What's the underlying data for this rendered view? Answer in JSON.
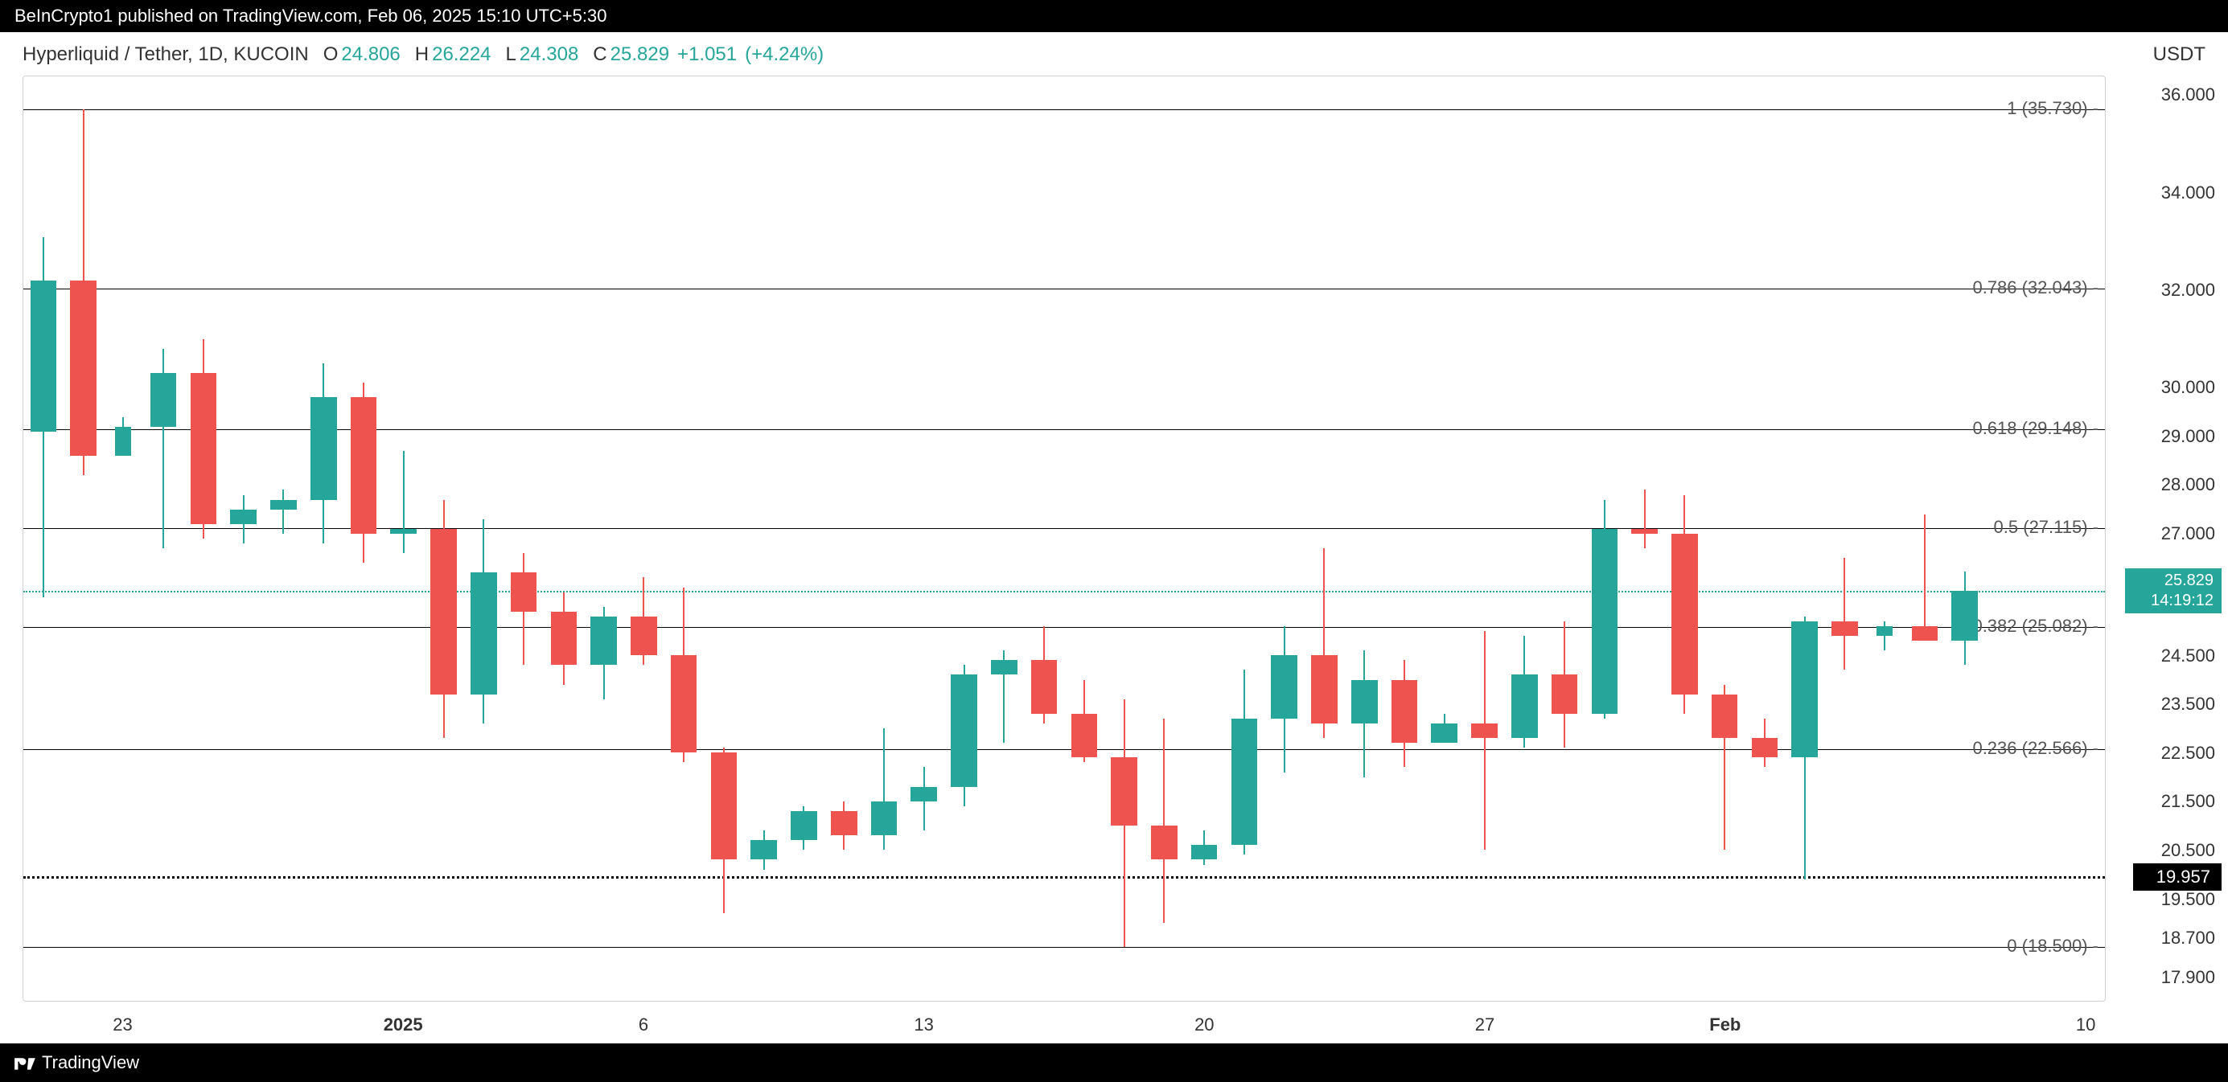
{
  "header": {
    "text": "BeInCrypto1 published on TradingView.com, Feb 06, 2025 15:10 UTC+5:30"
  },
  "ohlc": {
    "symbol": "Hyperliquid / Tether, 1D, KUCOIN",
    "o_lbl": "O",
    "o": "24.806",
    "h_lbl": "H",
    "h": "26.224",
    "l_lbl": "L",
    "l": "24.308",
    "c_lbl": "C",
    "c": "25.829",
    "chg": "+1.051",
    "pct": "(+4.24%)"
  },
  "footer": {
    "brand": "TradingView"
  },
  "chart": {
    "type": "candlestick",
    "bg": "#ffffff",
    "up_color": "#26a69a",
    "down_color": "#ef5350",
    "wick_up": "#26a69a",
    "wick_down": "#ef5350",
    "axis_color": "#333333",
    "grid_color": "#d0d0d0",
    "y_unit": "USDT",
    "y_min": 17.4,
    "y_max": 36.4,
    "y_ticks": [
      {
        "v": 36.0,
        "t": "36.000"
      },
      {
        "v": 34.0,
        "t": "34.000"
      },
      {
        "v": 32.0,
        "t": "32.000"
      },
      {
        "v": 30.0,
        "t": "30.000"
      },
      {
        "v": 29.0,
        "t": "29.000"
      },
      {
        "v": 28.0,
        "t": "28.000"
      },
      {
        "v": 27.0,
        "t": "27.000"
      },
      {
        "v": 25.0,
        "t": ""
      },
      {
        "v": 24.5,
        "t": "24.500"
      },
      {
        "v": 23.5,
        "t": "23.500"
      },
      {
        "v": 22.5,
        "t": "22.500"
      },
      {
        "v": 21.5,
        "t": "21.500"
      },
      {
        "v": 20.5,
        "t": "20.500"
      },
      {
        "v": 19.5,
        "t": "19.500"
      },
      {
        "v": 18.7,
        "t": "18.700"
      },
      {
        "v": 17.9,
        "t": "17.900"
      }
    ],
    "price_tag": {
      "v": 25.829,
      "line1": "25.829",
      "line2": "14:19:12"
    },
    "black_tag": {
      "v": 19.957,
      "t": "19.957"
    },
    "dotted_black_v": 19.957,
    "dotted_teal_v": 25.829,
    "fib_lines": [
      {
        "v": 35.73,
        "label": "1 (35.730)"
      },
      {
        "v": 32.043,
        "label": "0.786 (32.043)"
      },
      {
        "v": 29.148,
        "label": "0.618 (29.148)"
      },
      {
        "v": 27.115,
        "label": "0.5 (27.115)"
      },
      {
        "v": 25.082,
        "label": "0.382 (25.082)"
      },
      {
        "v": 22.566,
        "label": "0.236 (22.566)"
      },
      {
        "v": 18.5,
        "label": "0 (18.500)"
      }
    ],
    "x_ticks": [
      {
        "i": 2,
        "t": "23",
        "bold": false
      },
      {
        "i": 9,
        "t": "2025",
        "bold": true
      },
      {
        "i": 15,
        "t": "6",
        "bold": false
      },
      {
        "i": 22,
        "t": "13",
        "bold": false
      },
      {
        "i": 29,
        "t": "20",
        "bold": false
      },
      {
        "i": 36,
        "t": "27",
        "bold": false
      },
      {
        "i": 42,
        "t": "Feb",
        "bold": true
      },
      {
        "i": 51,
        "t": "10",
        "bold": false
      }
    ],
    "n_slots": 52,
    "candles": [
      {
        "i": 0,
        "o": 29.1,
        "h": 33.1,
        "l": 25.7,
        "c": 32.2
      },
      {
        "i": 1,
        "o": 32.2,
        "h": 35.73,
        "l": 28.2,
        "c": 28.6
      },
      {
        "i": 2,
        "o": 28.6,
        "h": 29.4,
        "l": 28.6,
        "c": 29.2,
        "thin": true
      },
      {
        "i": 3,
        "o": 29.2,
        "h": 30.8,
        "l": 26.7,
        "c": 30.3
      },
      {
        "i": 4,
        "o": 30.3,
        "h": 31.0,
        "l": 26.9,
        "c": 27.2
      },
      {
        "i": 5,
        "o": 27.2,
        "h": 27.8,
        "l": 26.8,
        "c": 27.5
      },
      {
        "i": 6,
        "o": 27.5,
        "h": 27.9,
        "l": 27.0,
        "c": 27.7
      },
      {
        "i": 7,
        "o": 27.7,
        "h": 30.5,
        "l": 26.8,
        "c": 29.8
      },
      {
        "i": 8,
        "o": 29.8,
        "h": 30.1,
        "l": 26.4,
        "c": 27.0
      },
      {
        "i": 9,
        "o": 27.0,
        "h": 28.7,
        "l": 26.6,
        "c": 27.1
      },
      {
        "i": 10,
        "o": 27.1,
        "h": 27.7,
        "l": 22.8,
        "c": 23.7
      },
      {
        "i": 11,
        "o": 23.7,
        "h": 27.3,
        "l": 23.1,
        "c": 26.2
      },
      {
        "i": 12,
        "o": 26.2,
        "h": 26.6,
        "l": 24.3,
        "c": 25.4
      },
      {
        "i": 13,
        "o": 25.4,
        "h": 25.8,
        "l": 23.9,
        "c": 24.3
      },
      {
        "i": 14,
        "o": 24.3,
        "h": 25.5,
        "l": 23.6,
        "c": 25.3
      },
      {
        "i": 15,
        "o": 25.3,
        "h": 26.1,
        "l": 24.3,
        "c": 24.5
      },
      {
        "i": 16,
        "o": 24.5,
        "h": 25.9,
        "l": 22.3,
        "c": 22.5
      },
      {
        "i": 17,
        "o": 22.5,
        "h": 22.6,
        "l": 19.2,
        "c": 20.3
      },
      {
        "i": 18,
        "o": 20.3,
        "h": 20.9,
        "l": 20.1,
        "c": 20.7
      },
      {
        "i": 19,
        "o": 20.7,
        "h": 21.4,
        "l": 20.5,
        "c": 21.3
      },
      {
        "i": 20,
        "o": 21.3,
        "h": 21.5,
        "l": 20.5,
        "c": 20.8
      },
      {
        "i": 21,
        "o": 20.8,
        "h": 23.0,
        "l": 20.5,
        "c": 21.5
      },
      {
        "i": 22,
        "o": 21.5,
        "h": 22.2,
        "l": 20.9,
        "c": 21.8
      },
      {
        "i": 23,
        "o": 21.8,
        "h": 24.3,
        "l": 21.4,
        "c": 24.1
      },
      {
        "i": 24,
        "o": 24.1,
        "h": 24.6,
        "l": 22.7,
        "c": 24.4
      },
      {
        "i": 25,
        "o": 24.4,
        "h": 25.1,
        "l": 23.1,
        "c": 23.3
      },
      {
        "i": 26,
        "o": 23.3,
        "h": 24.0,
        "l": 22.3,
        "c": 22.4
      },
      {
        "i": 27,
        "o": 22.4,
        "h": 23.6,
        "l": 18.5,
        "c": 21.0
      },
      {
        "i": 28,
        "o": 21.0,
        "h": 23.2,
        "l": 19.0,
        "c": 20.3
      },
      {
        "i": 29,
        "o": 20.3,
        "h": 20.9,
        "l": 20.2,
        "c": 20.6
      },
      {
        "i": 30,
        "o": 20.6,
        "h": 24.2,
        "l": 20.4,
        "c": 23.2
      },
      {
        "i": 31,
        "o": 23.2,
        "h": 25.1,
        "l": 22.1,
        "c": 24.5
      },
      {
        "i": 32,
        "o": 24.5,
        "h": 26.7,
        "l": 22.8,
        "c": 23.1
      },
      {
        "i": 33,
        "o": 23.1,
        "h": 24.6,
        "l": 22.0,
        "c": 24.0
      },
      {
        "i": 34,
        "o": 24.0,
        "h": 24.4,
        "l": 22.2,
        "c": 22.7
      },
      {
        "i": 35,
        "o": 22.7,
        "h": 23.3,
        "l": 22.8,
        "c": 23.1
      },
      {
        "i": 36,
        "o": 23.1,
        "h": 25.0,
        "l": 20.5,
        "c": 22.8
      },
      {
        "i": 37,
        "o": 22.8,
        "h": 24.9,
        "l": 22.6,
        "c": 24.1
      },
      {
        "i": 38,
        "o": 24.1,
        "h": 25.2,
        "l": 22.6,
        "c": 23.3
      },
      {
        "i": 39,
        "o": 23.3,
        "h": 27.7,
        "l": 23.2,
        "c": 27.1
      },
      {
        "i": 40,
        "o": 27.1,
        "h": 27.9,
        "l": 26.7,
        "c": 27.0
      },
      {
        "i": 41,
        "o": 27.0,
        "h": 27.8,
        "l": 23.3,
        "c": 23.7
      },
      {
        "i": 42,
        "o": 23.7,
        "h": 23.9,
        "l": 20.5,
        "c": 22.8
      },
      {
        "i": 43,
        "o": 22.8,
        "h": 23.2,
        "l": 22.2,
        "c": 22.4
      },
      {
        "i": 44,
        "o": 22.4,
        "h": 25.3,
        "l": 19.9,
        "c": 25.2
      },
      {
        "i": 45,
        "o": 25.2,
        "h": 26.5,
        "l": 24.2,
        "c": 24.9
      },
      {
        "i": 46,
        "o": 24.9,
        "h": 25.2,
        "l": 24.6,
        "c": 25.1,
        "thin": true
      },
      {
        "i": 47,
        "o": 25.1,
        "h": 27.4,
        "l": 24.8,
        "c": 24.8
      },
      {
        "i": 48,
        "o": 24.8,
        "h": 26.22,
        "l": 24.31,
        "c": 25.83
      }
    ]
  }
}
